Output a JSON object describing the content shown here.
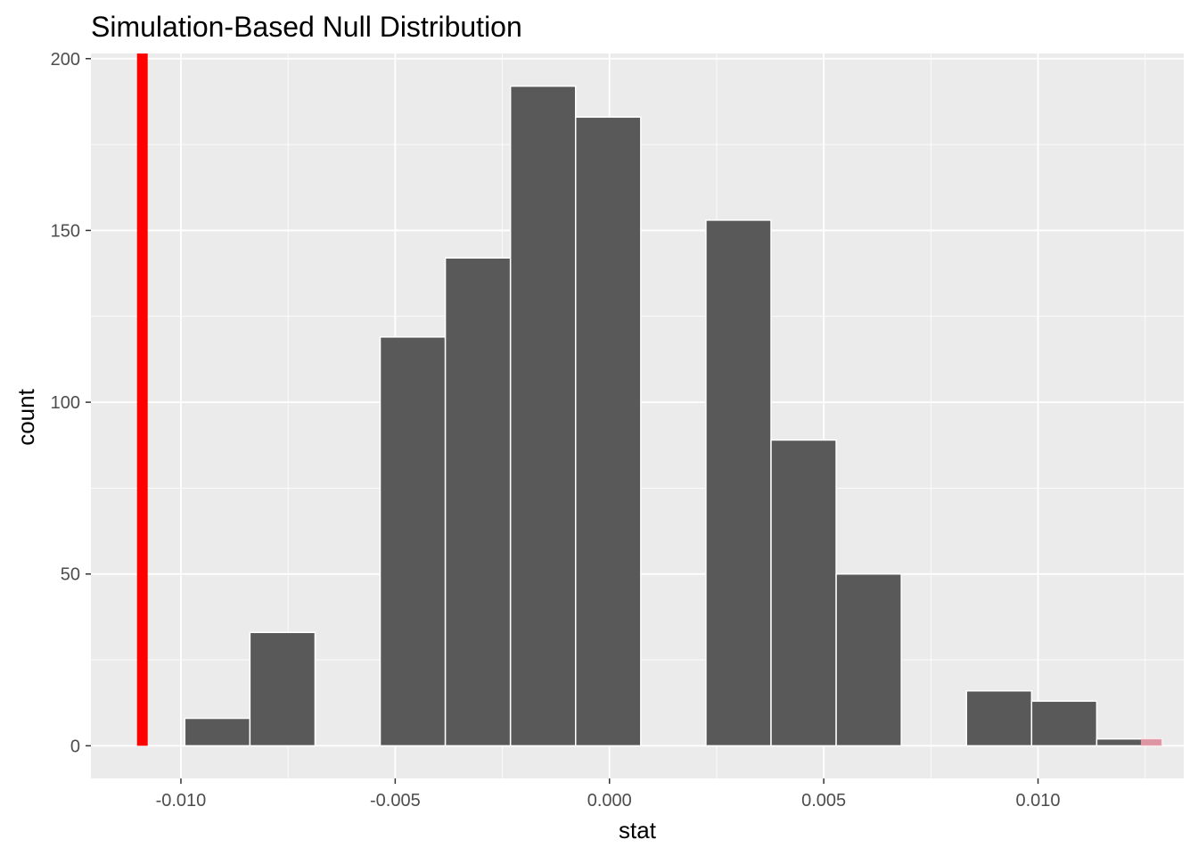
{
  "chart_data": {
    "type": "bar",
    "title": "Simulation-Based Null Distribution",
    "xlabel": "stat",
    "ylabel": "count",
    "xlim": [
      -0.0121,
      0.0134
    ],
    "ylim": [
      -9.5,
      201.5
    ],
    "x_ticks": [
      -0.01,
      -0.005,
      0.0,
      0.005,
      0.01
    ],
    "x_tick_labels": [
      "-0.010",
      "-0.005",
      "0.000",
      "0.005",
      "0.010"
    ],
    "y_ticks": [
      0,
      50,
      100,
      150,
      200
    ],
    "y_tick_labels": [
      "0",
      "50",
      "100",
      "150",
      "200"
    ],
    "grid": true,
    "bin_width": 0.00152,
    "bins": [
      {
        "center": -0.00915,
        "count": 8
      },
      {
        "center": -0.00763,
        "count": 33
      },
      {
        "center": -0.00611,
        "count": 0
      },
      {
        "center": -0.00459,
        "count": 119
      },
      {
        "center": -0.00307,
        "count": 142
      },
      {
        "center": -0.00155,
        "count": 192
      },
      {
        "center": -3e-05,
        "count": 183
      },
      {
        "center": 0.00149,
        "count": 0
      },
      {
        "center": 0.00301,
        "count": 153
      },
      {
        "center": 0.00453,
        "count": 89
      },
      {
        "center": 0.00605,
        "count": 50
      },
      {
        "center": 0.00757,
        "count": 0
      },
      {
        "center": 0.00909,
        "count": 16
      },
      {
        "center": 0.01061,
        "count": 13
      },
      {
        "center": 0.01213,
        "count": 2
      }
    ],
    "shaded_region": {
      "from": 0.0124,
      "to": 0.0134,
      "color": "#ff000040"
    },
    "observed_stat": {
      "x": -0.0109,
      "color": "#ff0000"
    },
    "colors": {
      "bar_fill": "#595959",
      "bar_outline": "#ffffff",
      "panel_bg": "#ebebeb",
      "grid": "#ffffff"
    }
  }
}
